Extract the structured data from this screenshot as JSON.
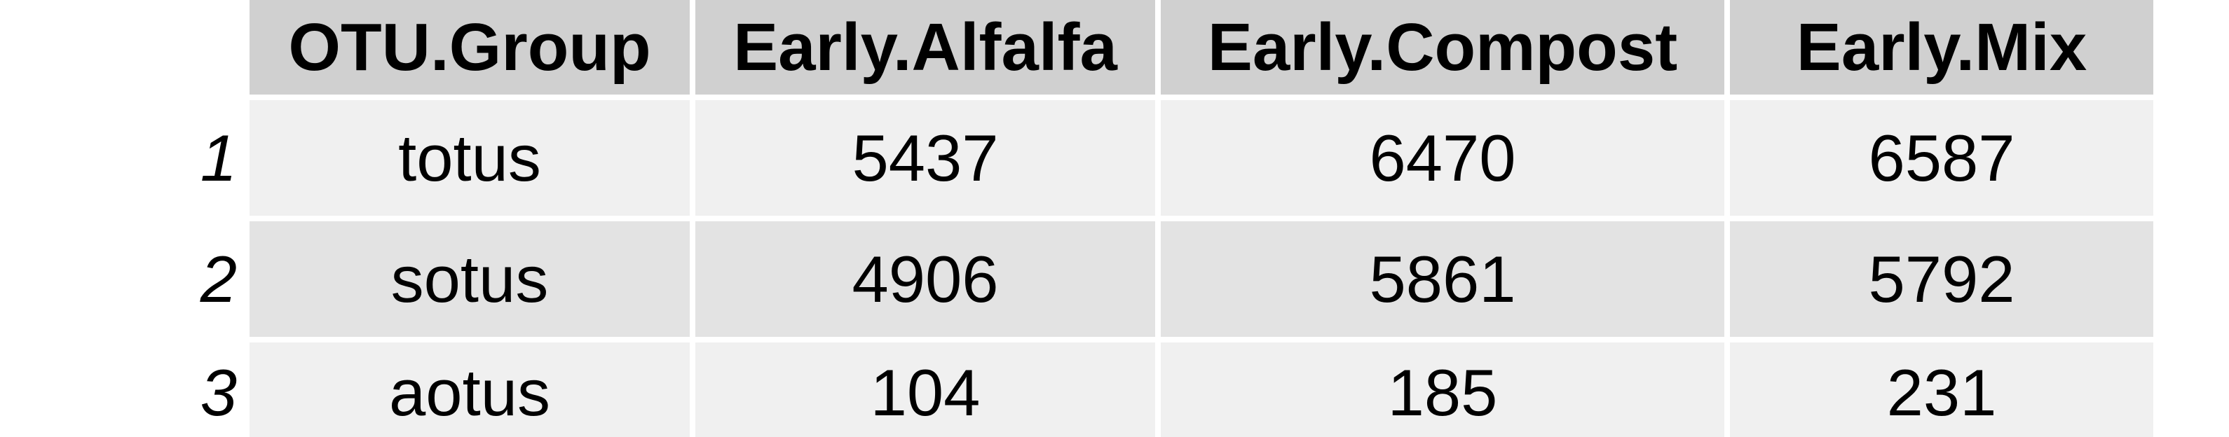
{
  "table": {
    "headers": [
      "OTU.Group",
      "Early.Alfalfa",
      "Early.Compost",
      "Early.Mix"
    ],
    "rows": [
      {
        "index": "1",
        "cells": [
          "totus",
          "5437",
          "6470",
          "6587"
        ]
      },
      {
        "index": "2",
        "cells": [
          "sotus",
          "4906",
          "5861",
          "5792"
        ]
      },
      {
        "index": "3",
        "cells": [
          "aotus",
          "104",
          "185",
          "231"
        ]
      }
    ]
  }
}
